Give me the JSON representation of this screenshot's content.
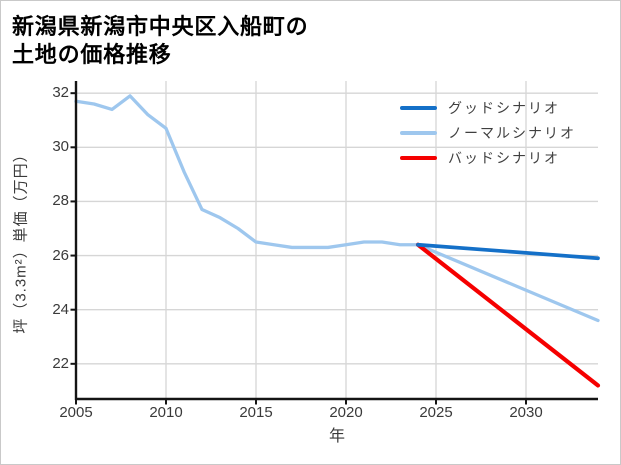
{
  "title": {
    "line1": "新潟県新潟市中央区入船町の",
    "line2": "土地の価格推移"
  },
  "axes": {
    "xlabel": "年",
    "ylabel": "坪（3.3m²）単価（万円）"
  },
  "legend": {
    "items": [
      {
        "id": "good-scenario",
        "label": "グッドシナリオ",
        "color": "#1470c8"
      },
      {
        "id": "normal-scenario",
        "label": "ノーマルシナリオ",
        "color": "#9ec7ee"
      },
      {
        "id": "bad-scenario",
        "label": "バッドシナリオ",
        "color": "#f50000"
      }
    ]
  },
  "colors": {
    "background": "#ffffff",
    "frame_border": "#c9c9c9",
    "grid": "#d6d6d6",
    "spine": "#141414",
    "tick_text": "#3a3a3a",
    "legend_text": "#3f3f3f",
    "title_text": "#000000",
    "history_line": "#9ec7ee",
    "good_line": "#1470c8",
    "normal_line": "#9ec7ee",
    "bad_line": "#f50000"
  },
  "chart_data": {
    "type": "line",
    "title": "新潟県新潟市中央区入船町の土地の価格推移",
    "xlabel": "年",
    "ylabel": "坪（3.3m²）単価（万円）",
    "xlim": [
      2005,
      2034
    ],
    "ylim": [
      20.7,
      32.45
    ],
    "x_ticks": [
      2005,
      2010,
      2015,
      2020,
      2025,
      2030
    ],
    "y_ticks": [
      22,
      24,
      26,
      28,
      30,
      32
    ],
    "grid": true,
    "legend_position": "upper-right",
    "series": [
      {
        "id": "price-history",
        "legend_label": null,
        "color": "#9ec7ee",
        "stroke_width": 3.3,
        "x": [
          2005,
          2006,
          2007,
          2008,
          2009,
          2010,
          2011,
          2012,
          2013,
          2014,
          2015,
          2016,
          2017,
          2018,
          2019,
          2020,
          2021,
          2022,
          2023,
          2024
        ],
        "y": [
          31.7,
          31.6,
          31.4,
          31.9,
          31.2,
          30.7,
          29.1,
          27.7,
          27.4,
          27.0,
          26.5,
          26.4,
          26.3,
          26.3,
          26.3,
          26.4,
          26.5,
          26.5,
          26.4,
          26.4
        ]
      },
      {
        "id": "normal-scenario",
        "legend_label": "ノーマルシナリオ",
        "color": "#9ec7ee",
        "stroke_width": 3.3,
        "x": [
          2024,
          2034
        ],
        "y": [
          26.4,
          23.6
        ]
      },
      {
        "id": "bad-scenario",
        "legend_label": "バッドシナリオ",
        "color": "#f50000",
        "stroke_width": 4.2,
        "x": [
          2024,
          2034
        ],
        "y": [
          26.4,
          21.2
        ]
      },
      {
        "id": "good-scenario",
        "legend_label": "グッドシナリオ",
        "color": "#1470c8",
        "stroke_width": 3.7,
        "x": [
          2024,
          2034
        ],
        "y": [
          26.4,
          25.9
        ]
      }
    ]
  }
}
